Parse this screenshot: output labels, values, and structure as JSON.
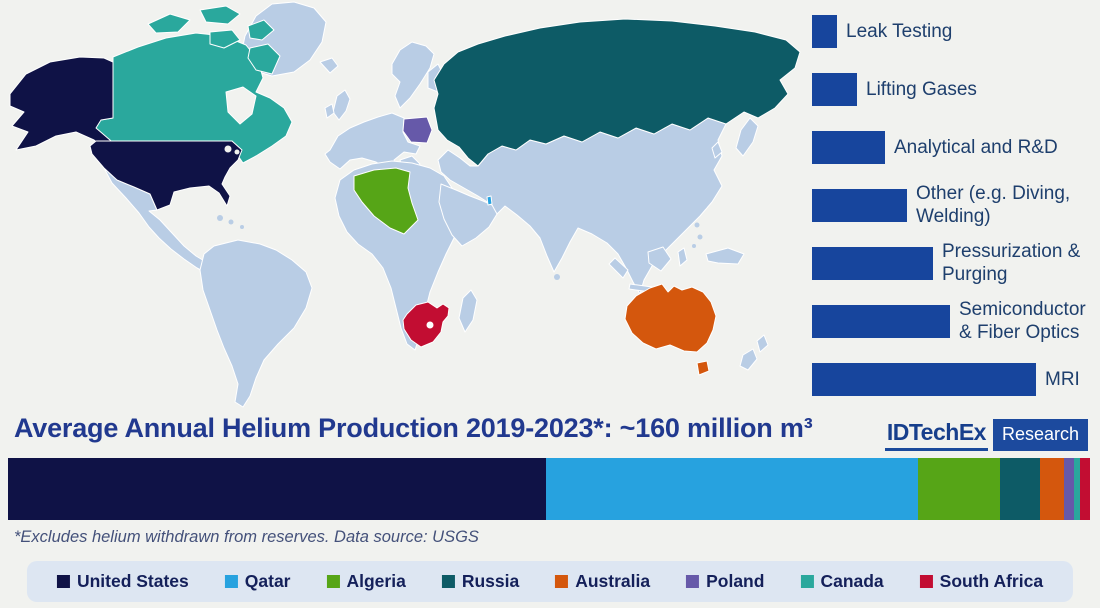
{
  "title": "Average Annual Helium Production 2019-2023*: ~160 million m³",
  "footnote": "*Excludes helium withdrawn from reserves. Data source: USGS",
  "logo": {
    "brand": "IDTechEx",
    "suffix": "Research"
  },
  "colors": {
    "page_bg": "#f1f2ef",
    "map_ocean": "#f1f2ef",
    "map_land": "#b9cde5",
    "app_bar": "#17459d",
    "app_label_text": "#1e3f6d",
    "title_text": "#21398f",
    "footnote_text": "#44517a",
    "legend_bg": "#dde6f2",
    "legend_text": "#14205a",
    "logo_brand_text": "#173f8c",
    "logo_box_bg": "#1c4a9e",
    "logo_box_text": "#ffffff",
    "countries": {
      "united_states": "#0f1246",
      "qatar": "#27a2df",
      "algeria": "#56a517",
      "russia": "#0d5b66",
      "australia": "#d4570d",
      "poland": "#6659a9",
      "canada": "#2aa89d",
      "south_africa": "#c20d32"
    }
  },
  "chart_data": [
    {
      "type": "bar",
      "orientation": "horizontal",
      "title": "Helium applications (share of demand, estimated from bar lengths; no axis shown)",
      "categories": [
        "Leak Testing",
        "Lifting Gases",
        "Analytical and R&D",
        "Other (e.g. Diving, Welding)",
        "Pressurization & Purging",
        "Semiconductor & Fiber Optics",
        "MRI"
      ],
      "values": [
        3.5,
        6.2,
        10.1,
        13.2,
        16.8,
        19.1,
        31.1
      ],
      "unit": "%",
      "xlabel": "",
      "ylabel": "",
      "grid": false,
      "axis_shown": false
    },
    {
      "type": "bar",
      "subtype": "single-stacked",
      "title": "Average Annual Helium Production 2019-2023*: ~160 million m³",
      "total_label": "~160 million m³",
      "series": [
        {
          "name": "United States",
          "color_key": "united_states",
          "share_pct": 49.7,
          "approx_million_m3": 79.5
        },
        {
          "name": "Qatar",
          "color_key": "qatar",
          "share_pct": 34.4,
          "approx_million_m3": 55.0
        },
        {
          "name": "Algeria",
          "color_key": "algeria",
          "share_pct": 7.6,
          "approx_million_m3": 12.2
        },
        {
          "name": "Russia",
          "color_key": "russia",
          "share_pct": 3.7,
          "approx_million_m3": 5.9
        },
        {
          "name": "Australia",
          "color_key": "australia",
          "share_pct": 2.2,
          "approx_million_m3": 3.5
        },
        {
          "name": "Poland",
          "color_key": "poland",
          "share_pct": 0.9,
          "approx_million_m3": 1.5
        },
        {
          "name": "Canada",
          "color_key": "canada",
          "share_pct": 0.6,
          "approx_million_m3": 1.0
        },
        {
          "name": "South Africa",
          "color_key": "south_africa",
          "share_pct": 0.9,
          "approx_million_m3": 1.5
        }
      ],
      "legend_position": "bottom"
    }
  ],
  "legend": {
    "items": [
      {
        "label": "United States",
        "color_key": "united_states"
      },
      {
        "label": "Qatar",
        "color_key": "qatar"
      },
      {
        "label": "Algeria",
        "color_key": "algeria"
      },
      {
        "label": "Russia",
        "color_key": "russia"
      },
      {
        "label": "Australia",
        "color_key": "australia"
      },
      {
        "label": "Poland",
        "color_key": "poland"
      },
      {
        "label": "Canada",
        "color_key": "canada"
      },
      {
        "label": "South Africa",
        "color_key": "south_africa"
      }
    ]
  },
  "map": {
    "highlighted_countries": [
      "United States",
      "Canada",
      "Russia",
      "Poland",
      "Algeria",
      "South Africa",
      "Qatar",
      "Australia"
    ]
  }
}
